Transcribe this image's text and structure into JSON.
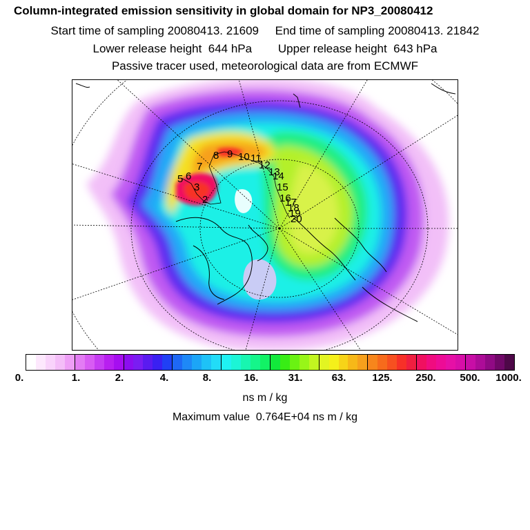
{
  "header": {
    "title": "Column-integrated emission sensitivity in global domain for NP3_20080412",
    "line2": "Start time of sampling 20080413. 21609     End time of sampling 20080413. 21842",
    "line3": "Lower release height  644 hPa        Upper release height  643 hPa",
    "line4": "Passive tracer used, meteorological data are from ECMWF"
  },
  "colorbar": {
    "colors": [
      "#ffffff",
      "#fde8fd",
      "#f9d3fb",
      "#f4bdf8",
      "#ee9ef6",
      "#e37cf4",
      "#d85cf3",
      "#c63df2",
      "#b81ff0",
      "#a60ef0",
      "#8c0ef0",
      "#7a1df2",
      "#5a1bf0",
      "#3a20f2",
      "#2040f5",
      "#1e68f5",
      "#1e88f7",
      "#1ca5f7",
      "#1ec2f7",
      "#22dcf7",
      "#1ff2f2",
      "#1cf5d6",
      "#18f5b0",
      "#15f58a",
      "#12f265",
      "#12e83b",
      "#38ed15",
      "#6af212",
      "#98f518",
      "#c2f520",
      "#e2f522",
      "#f5f01a",
      "#f7d418",
      "#f7b818",
      "#f7a01c",
      "#f7861c",
      "#f76b1c",
      "#f75020",
      "#f73028",
      "#f01e40",
      "#f01060",
      "#f00c80",
      "#ed0c96",
      "#e610a6",
      "#d80ea8",
      "#c80ea6",
      "#ad0c98",
      "#900a84",
      "#700868",
      "#4e0848"
    ],
    "tick_labels": [
      "0.",
      "1.",
      "2.",
      "4.",
      "8.",
      "16.",
      "31.",
      "63.",
      "125.",
      "250.",
      "500.",
      "1000."
    ],
    "units": "ns m / kg"
  },
  "max_value_text": "Maximum value  0.764E+04 ns m / kg",
  "trajectory_labels": [
    "2",
    "3",
    "5",
    "6",
    "7",
    "8",
    "9",
    "10",
    "11",
    "12",
    "13",
    "14",
    "15",
    "16",
    "17",
    "18",
    "19",
    "20"
  ]
}
